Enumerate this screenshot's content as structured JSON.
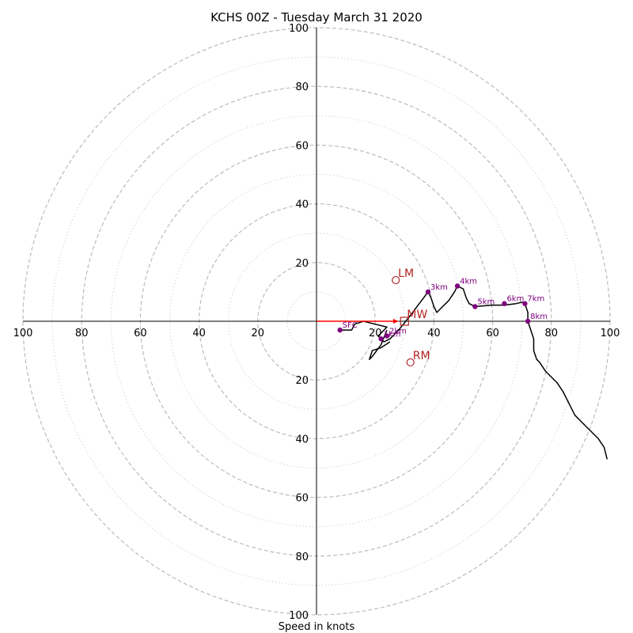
{
  "chart_data": {
    "type": "line",
    "title": "KCHS 00Z - Tuesday March 31 2020",
    "xlabel": "Speed in knots",
    "ylabel": "",
    "rings_major": [
      20,
      40,
      60,
      80,
      100
    ],
    "rings_minor": [
      10,
      30,
      50,
      70,
      90
    ],
    "max_speed": 100,
    "tick_labels": [
      "20",
      "40",
      "60",
      "80",
      "100"
    ],
    "grid": true,
    "colors": {
      "hodograph": "#000000",
      "height_markers": "#800080",
      "storm_motion": "#b22222",
      "mean_wind_vector": "#ff0000",
      "grid": "#bbbbbb"
    },
    "series": [
      {
        "type": "line",
        "points": [
          [
            8,
            -3
          ],
          [
            12,
            -3
          ],
          [
            13,
            -1
          ],
          [
            16,
            0
          ],
          [
            20,
            -1
          ],
          [
            24,
            -2
          ],
          [
            21,
            -5
          ],
          [
            23,
            -7
          ],
          [
            25,
            -6
          ],
          [
            28,
            -3
          ],
          [
            32,
            2
          ],
          [
            35,
            6
          ],
          [
            38,
            10
          ],
          [
            39,
            8
          ],
          [
            40,
            5
          ],
          [
            41,
            3
          ],
          [
            43,
            5
          ],
          [
            45,
            7
          ],
          [
            47,
            10
          ],
          [
            48,
            12
          ],
          [
            50,
            11
          ],
          [
            51,
            8
          ],
          [
            52,
            6
          ],
          [
            54,
            5
          ],
          [
            60,
            5.5
          ],
          [
            64,
            5.5
          ],
          [
            68,
            6
          ],
          [
            70,
            6.5
          ],
          [
            71,
            6
          ],
          [
            72,
            3
          ],
          [
            72,
            0
          ],
          [
            73,
            -3
          ],
          [
            74,
            -6
          ],
          [
            74,
            -10
          ],
          [
            75,
            -13
          ],
          [
            76,
            -14
          ],
          [
            78,
            -17
          ],
          [
            82,
            -21
          ],
          [
            84,
            -24
          ],
          [
            86,
            -28
          ],
          [
            88,
            -32
          ],
          [
            92,
            -36
          ],
          [
            96,
            -40
          ],
          [
            98,
            -43
          ],
          [
            99,
            -47
          ]
        ]
      },
      {
        "type": "line",
        "points": [
          [
            24,
            -3
          ],
          [
            22,
            -8
          ],
          [
            19,
            -12
          ],
          [
            18,
            -13
          ],
          [
            19,
            -10
          ],
          [
            22,
            -9
          ],
          [
            25,
            -7
          ]
        ]
      }
    ],
    "height_markers": [
      {
        "label": "SFC",
        "u": 8,
        "v": -3
      },
      {
        "label": "1km",
        "u": 22,
        "v": -6
      },
      {
        "label": "2km",
        "u": 24,
        "v": -5
      },
      {
        "label": "3km",
        "u": 38,
        "v": 10
      },
      {
        "label": "4km",
        "u": 48,
        "v": 12
      },
      {
        "label": "5km",
        "u": 54,
        "v": 5
      },
      {
        "label": "6km",
        "u": 64,
        "v": 6
      },
      {
        "label": "7km",
        "u": 71,
        "v": 6
      },
      {
        "label": "8km",
        "u": 72,
        "v": 0
      }
    ],
    "storm_motion": {
      "LM": {
        "label": "LM",
        "u": 27,
        "v": 14
      },
      "RM": {
        "label": "RM",
        "u": 32,
        "v": -14
      },
      "MW": {
        "label": "MW",
        "u": 30,
        "v": 0
      }
    },
    "mean_wind_vector": {
      "from": [
        0,
        0
      ],
      "to": [
        28,
        0
      ]
    }
  }
}
